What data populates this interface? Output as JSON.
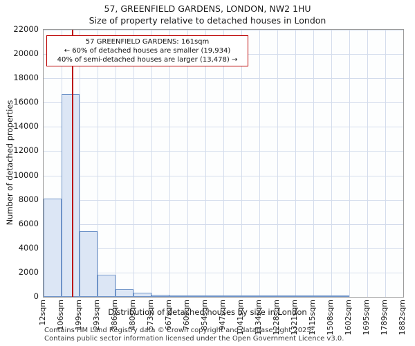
{
  "title": "57, GREENFIELD GARDENS, LONDON, NW2 1HU",
  "subtitle": "Size of property relative to detached houses in London",
  "chart_data": {
    "type": "bar",
    "categories": [
      "12sqm",
      "106sqm",
      "199sqm",
      "293sqm",
      "386sqm",
      "480sqm",
      "573sqm",
      "667sqm",
      "760sqm",
      "854sqm",
      "947sqm",
      "1041sqm",
      "1134sqm",
      "1228sqm",
      "1321sqm",
      "1415sqm",
      "1508sqm",
      "1602sqm",
      "1695sqm",
      "1789sqm",
      "1882sqm"
    ],
    "values": [
      8100,
      16700,
      5400,
      1800,
      650,
      350,
      160,
      100,
      60,
      30,
      15,
      8,
      5,
      3,
      2,
      1,
      1,
      0,
      0,
      0
    ],
    "title": "57, GREENFIELD GARDENS, LONDON, NW2 1HU",
    "subtitle": "Size of property relative to detached houses in London",
    "xlabel": "Distribution of detached houses by size in London",
    "ylabel": "Number of detached properties",
    "ylim": [
      0,
      22000
    ],
    "xlim_sqm": [
      12,
      1882
    ],
    "y_ticks": [
      0,
      2000,
      4000,
      6000,
      8000,
      10000,
      12000,
      14000,
      16000,
      18000,
      20000,
      22000
    ],
    "grid": true,
    "legend": "none",
    "bar_fill": "#dce6f5",
    "bar_border": "#6e93c8",
    "marker": {
      "label": "57 GREENFIELD GARDENS",
      "value_sqm": 161,
      "line_color": "#bb0000"
    },
    "annotation": {
      "border_color": "#bb0000",
      "lines": [
        "57 GREENFIELD GARDENS: 161sqm",
        "← 60% of detached houses are smaller (19,934)",
        "40% of semi-detached houses are larger (13,478) →"
      ]
    }
  },
  "footer": {
    "line1": "Contains HM Land Registry data © Crown copyright and database right 2025.",
    "line2": "Contains public sector information licensed under the Open Government Licence v3.0."
  }
}
